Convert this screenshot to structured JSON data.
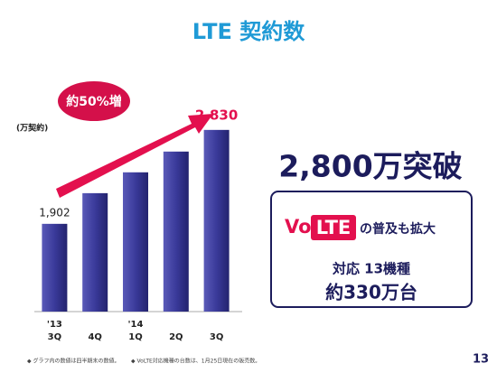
{
  "title": "LTE 契約数",
  "chart_data": {
    "type": "bar",
    "unit_label": "(万契約)",
    "badge": "約50%増",
    "categories": [
      "3Q",
      "4Q",
      "1Q",
      "2Q",
      "3Q"
    ],
    "year_labels": [
      "'13",
      null,
      "'14",
      null,
      null
    ],
    "values": [
      1902,
      2205,
      2411,
      2616,
      2830
    ],
    "value_labels": [
      "1,902",
      null,
      null,
      null,
      "2,830"
    ],
    "color": "#33338f",
    "ylim": [
      1035,
      2900
    ]
  },
  "headline": "2,800万突破",
  "volte_box": {
    "logo_vo": "Vo",
    "logo_lte": "LTE",
    "text": "の普及も拡大",
    "models": "対応 13機種",
    "units": "約330万台"
  },
  "footnotes": [
    "◆ グラフ内の数値は四半期末の数値。",
    "◆ VoLTE対応機種の台数は、1月25日現在の販売数。"
  ],
  "page_number": "13"
}
